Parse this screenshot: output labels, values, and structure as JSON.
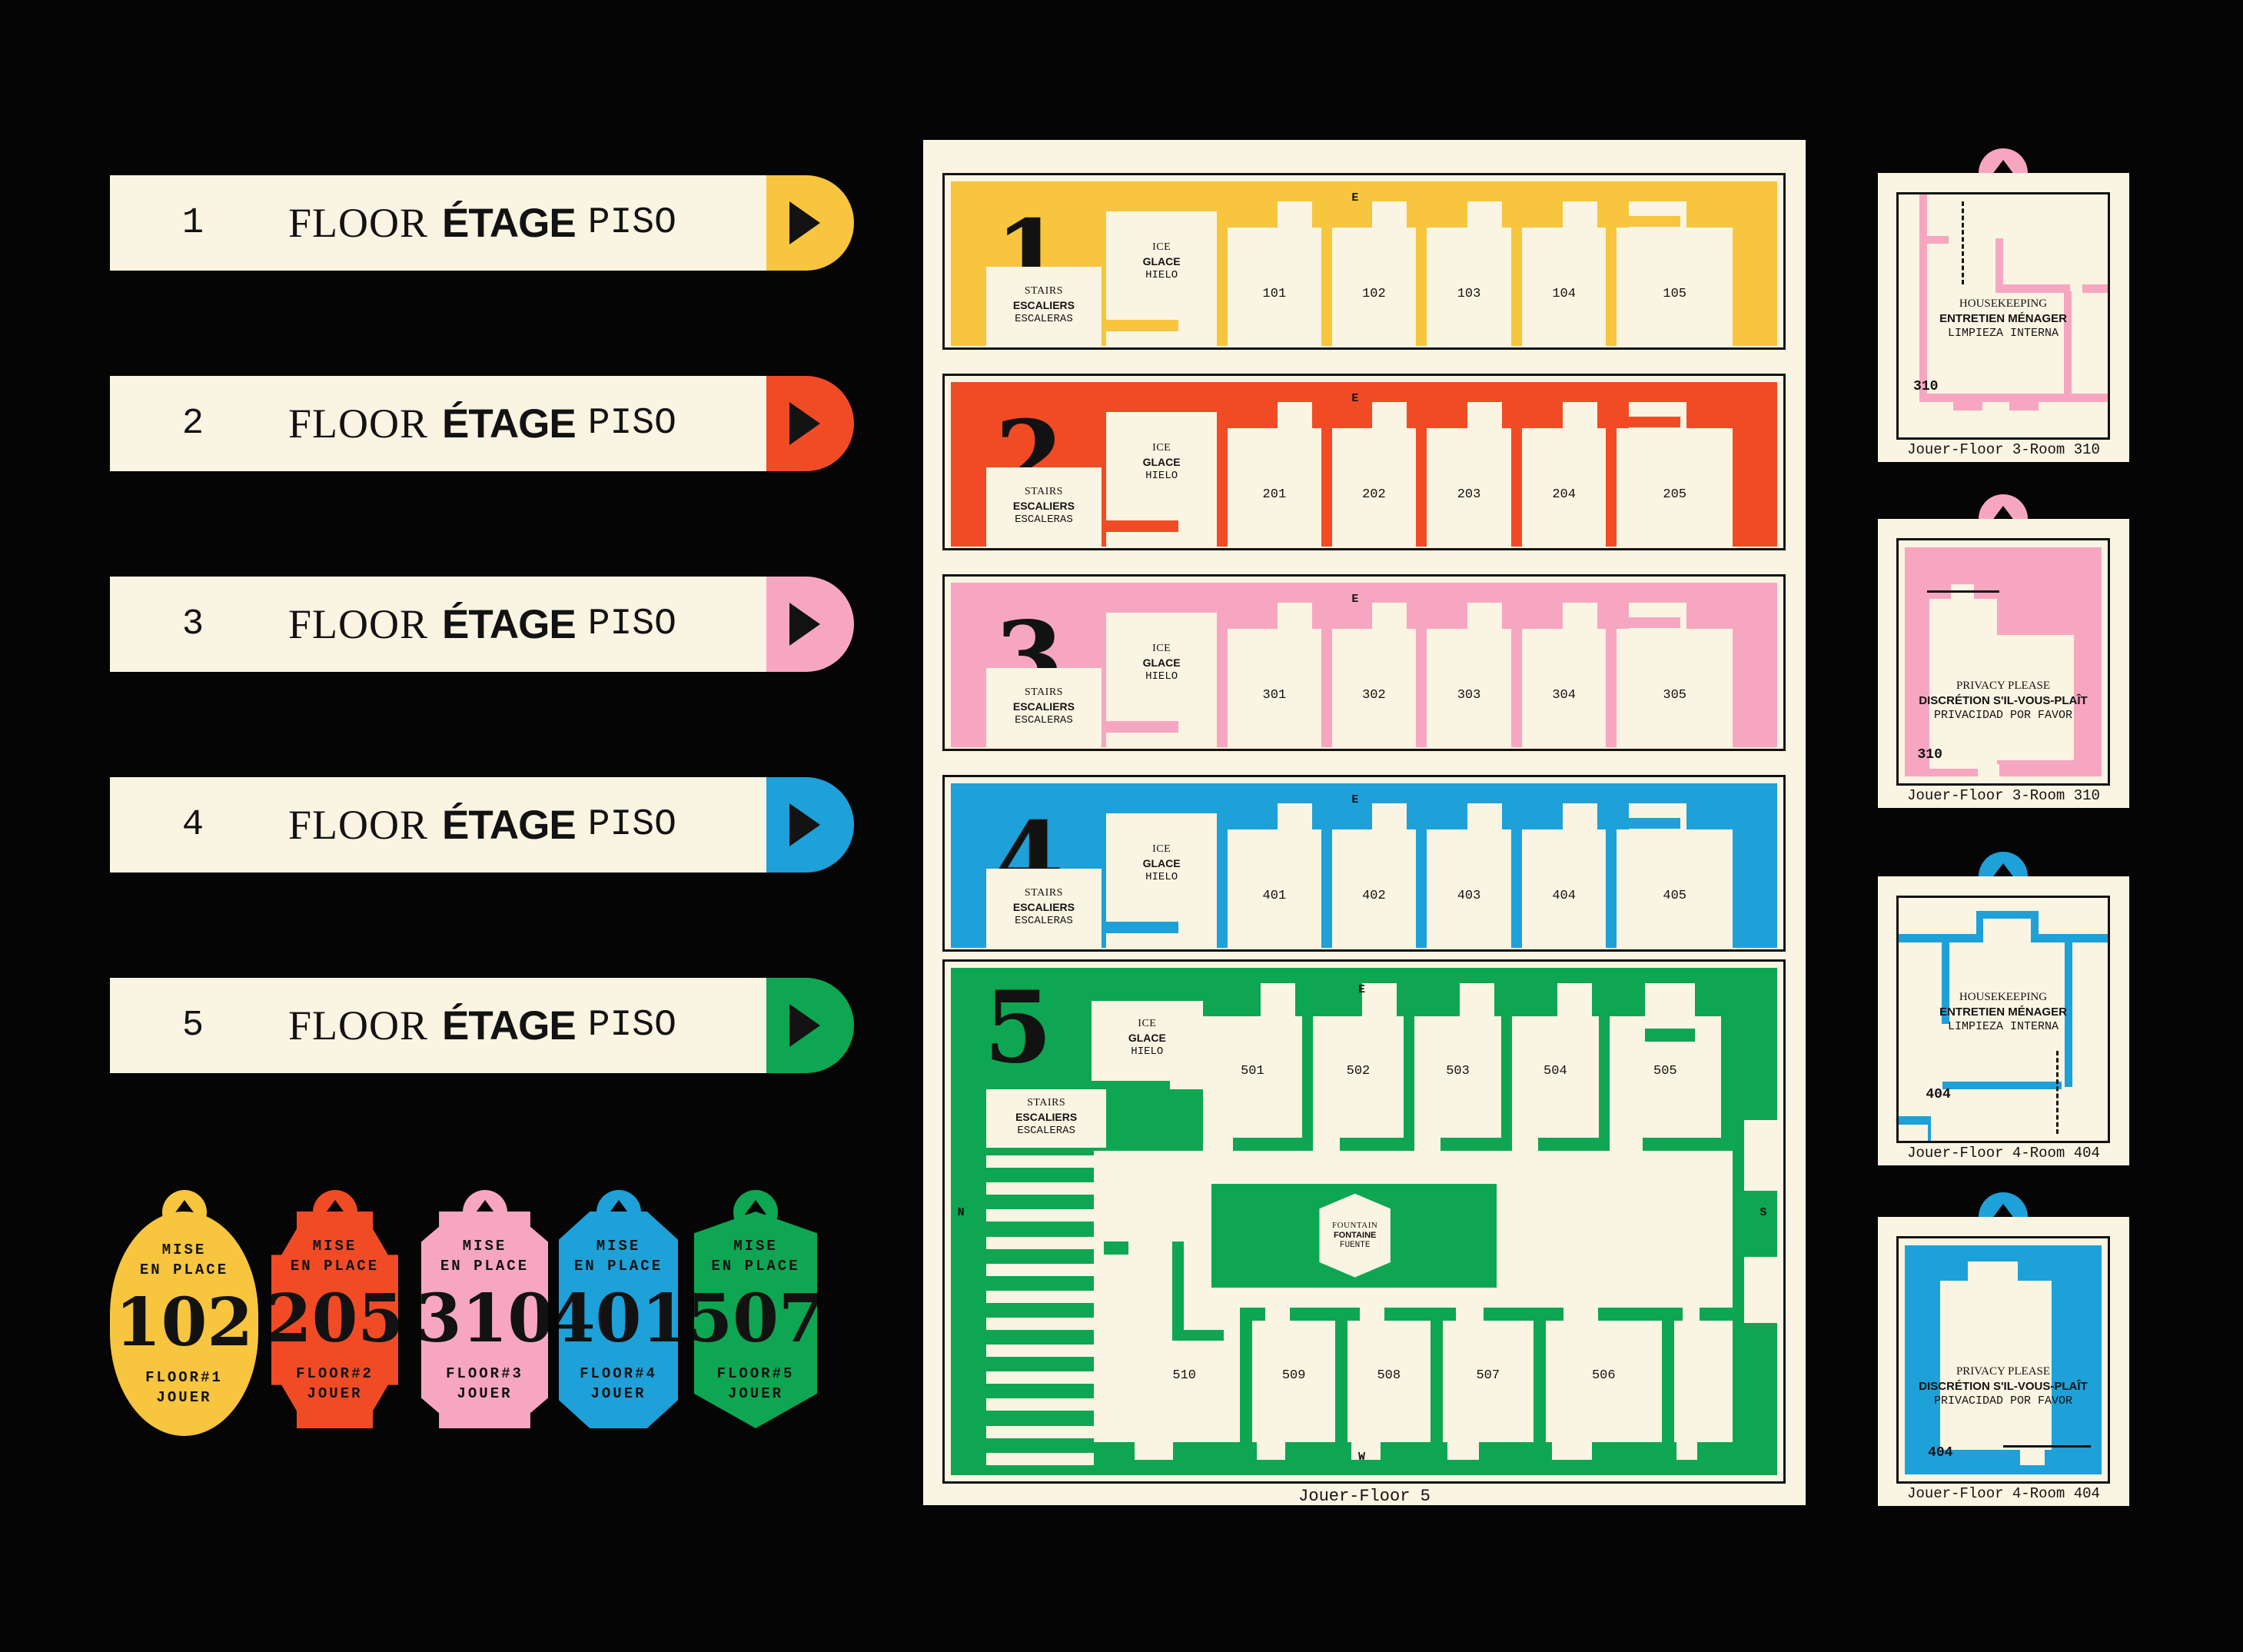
{
  "colors": {
    "yellow": "#F7C53E",
    "red": "#F14B26",
    "pink": "#F7A6C1",
    "blue": "#1EA0D8",
    "green": "#0EA652",
    "cream": "#FAF4E2",
    "ink": "#131313",
    "background": "#050505"
  },
  "signs": {
    "floor_label": "FLOOR",
    "etage_label": "ÉTAGE",
    "piso_label": "PISO",
    "arrow_icon": "play-triangle-icon",
    "items": [
      {
        "number": "1",
        "color": "yellow"
      },
      {
        "number": "2",
        "color": "red"
      },
      {
        "number": "3",
        "color": "pink"
      },
      {
        "number": "4",
        "color": "blue"
      },
      {
        "number": "5",
        "color": "green"
      }
    ]
  },
  "tags": {
    "line1": "MISE",
    "line2": "EN PLACE",
    "bottom_line": "JOUER",
    "items": [
      {
        "number": "102",
        "floor_line": "FLOOR#1",
        "color": "yellow",
        "shape": "round"
      },
      {
        "number": "205",
        "floor_line": "FLOOR#2",
        "color": "red",
        "shape": "ticket"
      },
      {
        "number": "310",
        "floor_line": "FLOOR#3",
        "color": "pink",
        "shape": "plaque"
      },
      {
        "number": "401",
        "floor_line": "FLOOR#4",
        "color": "blue",
        "shape": "octagon"
      },
      {
        "number": "507",
        "floor_line": "FLOOR#5",
        "color": "green",
        "shape": "shield"
      }
    ]
  },
  "poster": {
    "labels": {
      "ice": [
        "ICE",
        "GLACE",
        "HIELO"
      ],
      "stairs": [
        "STAIRS",
        "ESCALIERS",
        "ESCALERAS"
      ],
      "fountain": [
        "FOUNTAIN",
        "FONTAINE",
        "FUENTE"
      ],
      "compass": {
        "e": "E",
        "n": "N",
        "s": "S",
        "w": "W"
      }
    },
    "floors": [
      {
        "number": "1",
        "color": "yellow",
        "rooms": [
          "101",
          "102",
          "103",
          "104",
          "105"
        ]
      },
      {
        "number": "2",
        "color": "red",
        "rooms": [
          "201",
          "202",
          "203",
          "204",
          "205"
        ]
      },
      {
        "number": "3",
        "color": "pink",
        "rooms": [
          "301",
          "302",
          "303",
          "304",
          "305"
        ]
      },
      {
        "number": "4",
        "color": "blue",
        "rooms": [
          "401",
          "402",
          "403",
          "404",
          "405"
        ]
      },
      {
        "number": "5",
        "color": "green",
        "rooms_top": [
          "501",
          "502",
          "503",
          "504",
          "505"
        ],
        "rooms_bottom": [
          "510",
          "509",
          "508",
          "507",
          "506"
        ]
      }
    ],
    "caption": "Jouer-Floor 5"
  },
  "cards": [
    {
      "style": "outline",
      "color": "pink",
      "room": "310",
      "message": [
        "HOUSEKEEPING",
        "ENTRETIEN MÉNAGER",
        "LIMPIEZA INTERNA"
      ],
      "caption": "Jouer-Floor 3-Room 310"
    },
    {
      "style": "filled",
      "color": "pink",
      "room": "310",
      "message": [
        "PRIVACY PLEASE",
        "DISCRÉTION S'IL-VOUS-PLAÎT",
        "PRIVACIDAD POR FAVOR"
      ],
      "caption": "Jouer-Floor 3-Room 310"
    },
    {
      "style": "outline",
      "color": "blue",
      "room": "404",
      "message": [
        "HOUSEKEEPING",
        "ENTRETIEN MÉNAGER",
        "LIMPIEZA INTERNA"
      ],
      "caption": "Jouer-Floor 4-Room 404"
    },
    {
      "style": "filled",
      "color": "blue",
      "room": "404",
      "message": [
        "PRIVACY PLEASE",
        "DISCRÉTION S'IL-VOUS-PLAÎT",
        "PRIVACIDAD POR FAVOR"
      ],
      "caption": "Jouer-Floor 4-Room 404"
    }
  ]
}
